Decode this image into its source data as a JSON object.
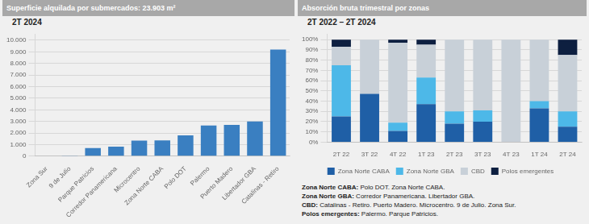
{
  "chart_data": [
    {
      "type": "bar",
      "title": "Superficie alquilada por submercados: 23.903 m²",
      "subtitle": "2T 2024",
      "categories": [
        "Zona Sur",
        "9 de Julio",
        "Parque Patricios",
        "Corredor Panamericana",
        "Microcentro",
        "Zona Norte CABA",
        "Polo DOT",
        "Palermo",
        "Puerto Madero",
        "Libertador GBA",
        "Catalinas - Retiro"
      ],
      "values": [
        0,
        30,
        700,
        820,
        1350,
        1370,
        1800,
        2650,
        2700,
        3000,
        9200
      ],
      "color": "#3a7fc1",
      "ylim": [
        0,
        10500
      ],
      "yticks": [
        0,
        {
          "value": 1000,
          "label": "1.000"
        },
        {
          "value": 2000,
          "label": "2.000"
        },
        {
          "value": 3000,
          "label": "3.000"
        },
        {
          "value": 4000,
          "label": "4.000"
        },
        {
          "value": 5000,
          "label": "5.000"
        },
        {
          "value": 6000,
          "label": "6.000"
        },
        {
          "value": 7000,
          "label": "7.000"
        },
        {
          "value": 8000,
          "label": "8.000"
        },
        {
          "value": 9000,
          "label": "9.000"
        },
        {
          "value": 10000,
          "label": "10.000"
        }
      ],
      "grid": true
    },
    {
      "type": "bar",
      "stacked": true,
      "title": "Absorción bruta trimestral por zonas",
      "subtitle": "2T 2022 – 2T 2024",
      "categories": [
        "2T 22",
        "3T 22",
        "4T 22",
        "1T 23",
        "2T 23",
        "3T 23",
        "4T 23",
        "1T 24",
        "2T 24"
      ],
      "series": [
        {
          "name": "Zona Norte CABA",
          "color": "#1f5fa6",
          "values": [
            25,
            47,
            11,
            37,
            18,
            20,
            0,
            33,
            15
          ]
        },
        {
          "name": "Zona Norte GBA",
          "color": "#4db8e8",
          "values": [
            50,
            0,
            8,
            26,
            12,
            11,
            0,
            7,
            15
          ]
        },
        {
          "name": "CBD",
          "color": "#c8d0d8",
          "values": [
            18,
            53,
            78,
            32,
            70,
            69,
            100,
            60,
            55
          ]
        },
        {
          "name": "Polos emergentes",
          "color": "#0d1f40",
          "values": [
            7,
            0,
            3,
            5,
            0,
            0,
            0,
            0,
            15
          ]
        }
      ],
      "ylim": [
        0,
        105
      ],
      "yticks": [
        {
          "value": 0,
          "label": "0%"
        },
        {
          "value": 10,
          "label": "10%"
        },
        {
          "value": 20,
          "label": "20%"
        },
        {
          "value": 30,
          "label": "30%"
        },
        {
          "value": 40,
          "label": "40%"
        },
        {
          "value": 50,
          "label": "50%"
        },
        {
          "value": 60,
          "label": "60%"
        },
        {
          "value": 70,
          "label": "70%"
        },
        {
          "value": 80,
          "label": "80%"
        },
        {
          "value": 90,
          "label": "90%"
        },
        {
          "value": 100,
          "label": "100%"
        }
      ],
      "grid": true,
      "legend": "bottom",
      "annotations": [
        "Zona Norte CABA: Polo DOT. Zona Norte CABA.",
        "Zona Norte GBA: Corredor Panamericana. Libertador GBA.",
        "CBD: Catalinas - Retiro. Puerto Madero. Microcentro. 9 de Julio. Zona Sur.",
        "Polos emergentes: Palermo. Parque Patricios."
      ]
    }
  ]
}
